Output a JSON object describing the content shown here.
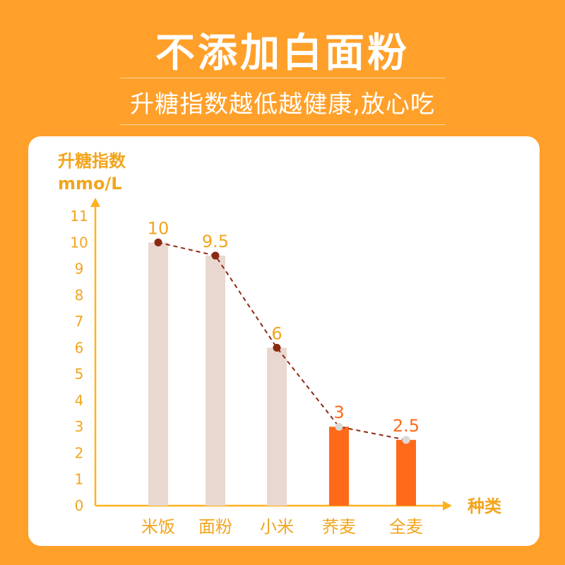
{
  "header": {
    "title": "不添加白面粉",
    "subtitle": "升糖指数越低越健康,放心吃"
  },
  "chart_data": {
    "type": "bar",
    "ylabel": "升糖指数",
    "yunit": "mmo/L",
    "xlabel": "种类",
    "ylim": [
      0,
      11
    ],
    "yticks": [
      "0",
      "1",
      "2",
      "3",
      "4",
      "5",
      "6",
      "7",
      "8",
      "9",
      "10",
      "11"
    ],
    "categories": [
      "米饭",
      "面粉",
      "小米",
      "荞麦",
      "全麦"
    ],
    "values": [
      10,
      9.5,
      6,
      3,
      2.5
    ],
    "value_labels": [
      "10",
      "9.5",
      "6",
      "3",
      "2.5"
    ],
    "highlight": [
      false,
      false,
      false,
      true,
      true
    ],
    "overlay": "dashed line connecting bar tops",
    "colors": {
      "background": "#FFA02A",
      "bar_normal": "#E9D8D0",
      "bar_highlight": "#FF6A1A",
      "axis": "#FFB11F",
      "label_normal": "#F2A51C",
      "label_highlight": "#FF6A1A",
      "line": "#8B2A12",
      "marker_normal": "#8B2A12",
      "marker_highlight": "#D9D9D9"
    }
  }
}
